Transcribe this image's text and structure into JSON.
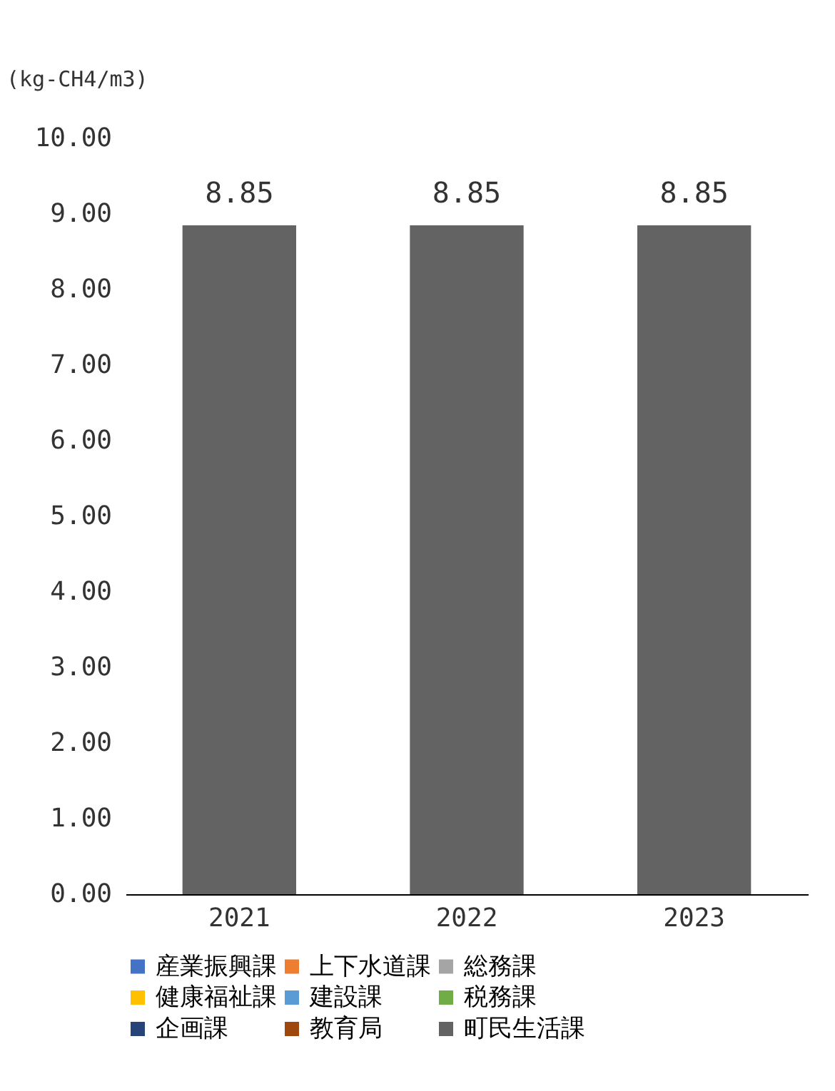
{
  "chart_data": {
    "type": "bar",
    "ylabel": "(kg-CH4/m3)",
    "categories": [
      "2021",
      "2022",
      "2023"
    ],
    "series": [
      {
        "name": "産業振興課",
        "color": "#4472c4",
        "values": [
          null,
          null,
          null
        ]
      },
      {
        "name": "上下水道課",
        "color": "#ed7d31",
        "values": [
          null,
          null,
          null
        ]
      },
      {
        "name": "総務課",
        "color": "#a5a5a5",
        "values": [
          null,
          null,
          null
        ]
      },
      {
        "name": "健康福祉課",
        "color": "#ffc000",
        "values": [
          null,
          null,
          null
        ]
      },
      {
        "name": "建設課",
        "color": "#5b9bd5",
        "values": [
          null,
          null,
          null
        ]
      },
      {
        "name": "税務課",
        "color": "#70ad47",
        "values": [
          null,
          null,
          null
        ]
      },
      {
        "name": "企画課",
        "color": "#264478",
        "values": [
          null,
          null,
          null
        ]
      },
      {
        "name": "教育局",
        "color": "#9e480e",
        "values": [
          null,
          null,
          null
        ]
      },
      {
        "name": "町民生活課",
        "color": "#636363",
        "values": [
          8.85,
          8.85,
          8.85
        ]
      }
    ],
    "ylim": [
      0,
      10
    ],
    "yticks": [
      {
        "value": 0,
        "label": "0.00"
      },
      {
        "value": 1,
        "label": "1.00"
      },
      {
        "value": 2,
        "label": "2.00"
      },
      {
        "value": 3,
        "label": "3.00"
      },
      {
        "value": 4,
        "label": "4.00"
      },
      {
        "value": 5,
        "label": "5.00"
      },
      {
        "value": 6,
        "label": "6.00"
      },
      {
        "value": 7,
        "label": "7.00"
      },
      {
        "value": 8,
        "label": "8.00"
      },
      {
        "value": 9,
        "label": "9.00"
      },
      {
        "value": 10,
        "label": "10.00"
      }
    ],
    "grid": false,
    "legend": "bottom",
    "data_labels": true
  }
}
